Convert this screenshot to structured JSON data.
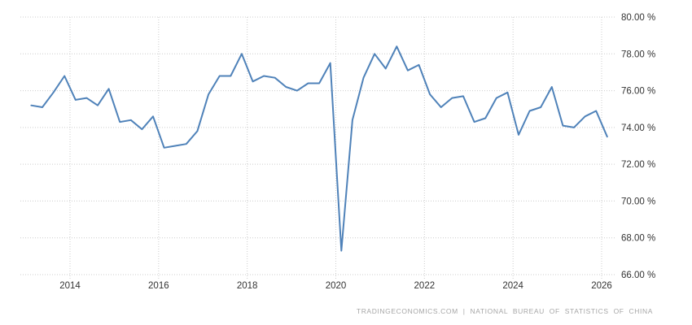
{
  "chart_data": {
    "type": "line",
    "title": "",
    "xlabel": "",
    "ylabel": "",
    "frequency": "quarterly",
    "x_start": "2013 Q1",
    "x_end": "2026 Q1",
    "x_labels": [
      "2013 Q1",
      "2013 Q2",
      "2013 Q3",
      "2013 Q4",
      "2014 Q1",
      "2014 Q2",
      "2014 Q3",
      "2014 Q4",
      "2015 Q1",
      "2015 Q2",
      "2015 Q3",
      "2015 Q4",
      "2016 Q1",
      "2016 Q2",
      "2016 Q3",
      "2016 Q4",
      "2017 Q1",
      "2017 Q2",
      "2017 Q3",
      "2017 Q4",
      "2018 Q1",
      "2018 Q2",
      "2018 Q3",
      "2018 Q4",
      "2019 Q1",
      "2019 Q2",
      "2019 Q3",
      "2019 Q4",
      "2020 Q1",
      "2020 Q2",
      "2020 Q3",
      "2020 Q4",
      "2021 Q1",
      "2021 Q2",
      "2021 Q3",
      "2021 Q4",
      "2022 Q1",
      "2022 Q2",
      "2022 Q3",
      "2022 Q4",
      "2023 Q1",
      "2023 Q2",
      "2023 Q3",
      "2023 Q4",
      "2024 Q1",
      "2024 Q2",
      "2024 Q3",
      "2024 Q4",
      "2025 Q1",
      "2025 Q2",
      "2025 Q3",
      "2025 Q4",
      "2026 Q1"
    ],
    "values": [
      75.2,
      75.1,
      75.9,
      76.8,
      75.5,
      75.6,
      75.2,
      76.1,
      74.3,
      74.4,
      73.9,
      74.6,
      72.9,
      73.0,
      73.1,
      73.8,
      75.8,
      76.8,
      76.8,
      78.0,
      76.5,
      76.8,
      76.7,
      76.2,
      76.0,
      76.4,
      76.4,
      77.5,
      67.3,
      74.4,
      76.7,
      78.0,
      77.2,
      78.4,
      77.1,
      77.4,
      75.8,
      75.1,
      75.6,
      75.7,
      74.3,
      74.5,
      75.6,
      75.9,
      73.6,
      74.9,
      75.1,
      76.2,
      74.1,
      74.0,
      74.6,
      74.9,
      73.5
    ],
    "y_axis": {
      "min": 66,
      "max": 80,
      "tick_values": [
        80,
        78,
        76,
        74,
        72,
        70,
        68,
        66
      ],
      "tick_labels": [
        "80.00 %",
        "78.00 %",
        "76.00 %",
        "74.00 %",
        "72.00 %",
        "70.00 %",
        "68.00 %",
        "66.00 %"
      ],
      "side": "right"
    },
    "x_axis": {
      "tick_years": [
        2014,
        2016,
        2018,
        2020,
        2022,
        2024,
        2026
      ],
      "tick_labels": [
        "2014",
        "2016",
        "2018",
        "2020",
        "2022",
        "2024",
        "2026"
      ]
    },
    "grid": "dotted",
    "legend": "none",
    "colors": {
      "line": "#4f82b9",
      "grid": "#cccccc",
      "tick_text": "#333333",
      "background": "#ffffff"
    }
  },
  "footer": {
    "text": "TRADINGECONOMICS.COM | NATIONAL BUREAU OF STATISTICS OF CHINA"
  }
}
